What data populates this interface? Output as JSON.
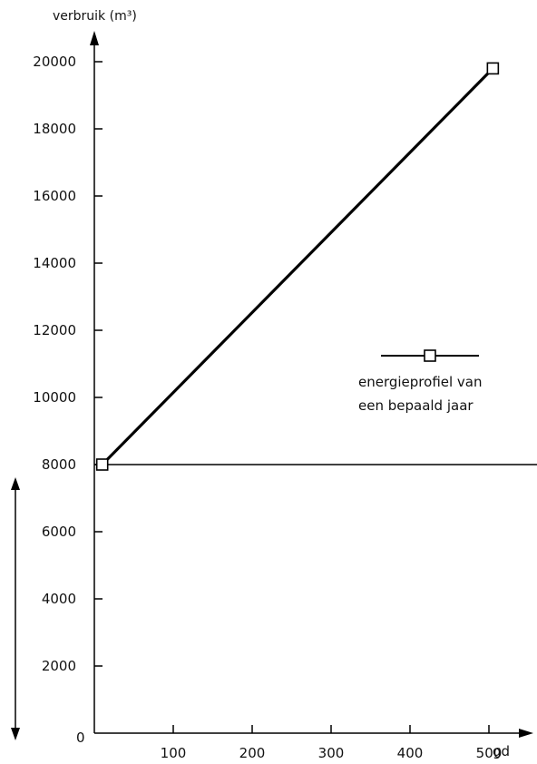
{
  "chart_data": {
    "type": "line",
    "ylabel": "verbruik (m³)",
    "xlabel": "gd",
    "x_ticks": [
      100,
      200,
      300,
      400,
      500
    ],
    "y_ticks": [
      2000,
      4000,
      6000,
      8000,
      10000,
      12000,
      14000,
      16000,
      18000,
      20000
    ],
    "origin_label": "0",
    "xlim": [
      0,
      540
    ],
    "ylim": [
      0,
      20800
    ],
    "grid": false,
    "legend_position": "right",
    "series": [
      {
        "name": "energieprofiel van een bepaald jaar",
        "marker": "open-square",
        "points": [
          {
            "x": 10,
            "y": 8000
          },
          {
            "x": 505,
            "y": 19800
          }
        ]
      }
    ],
    "reference_lines": [
      {
        "orientation": "horizontal",
        "y": 8000
      }
    ],
    "vertical_double_arrow": {
      "from": 0,
      "to": 8000
    }
  },
  "legend": {
    "line1": "energieprofiel van",
    "line2": "een bepaald jaar"
  }
}
